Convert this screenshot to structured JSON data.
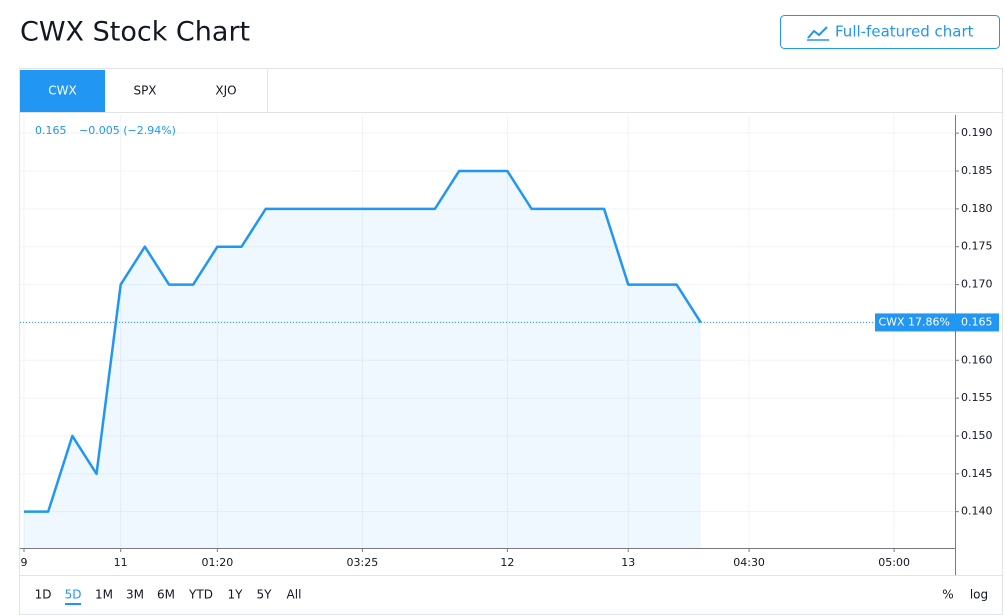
{
  "header": {
    "title": "CWX Stock Chart",
    "button": "Full-featured chart"
  },
  "tabs": [
    "CWX",
    "SPX",
    "XJO"
  ],
  "active_tab": 0,
  "chart_data": {
    "type": "line",
    "legend": {
      "last": "0.165",
      "change": "−0.005 (−2.94%)"
    },
    "categories": [
      "9",
      null,
      null,
      null,
      "11",
      null,
      null,
      null,
      "01:20",
      null,
      null,
      null,
      null,
      null,
      "03:25",
      null,
      null,
      null,
      null,
      null,
      "12",
      null,
      null,
      null,
      null,
      "13",
      null,
      null,
      null,
      null,
      "04:30",
      null,
      null,
      null,
      null,
      null,
      "05:00",
      null,
      null
    ],
    "values": [
      0.14,
      0.14,
      0.15,
      0.145,
      0.17,
      0.175,
      0.17,
      0.17,
      0.175,
      0.175,
      0.18,
      0.18,
      0.18,
      0.18,
      0.18,
      0.18,
      0.18,
      0.18,
      0.185,
      0.185,
      0.185,
      0.18,
      0.18,
      0.18,
      0.18,
      0.17,
      0.17,
      0.17,
      0.165,
      null,
      null,
      null,
      null,
      null,
      null,
      null,
      null,
      null,
      null
    ],
    "color": "#2196f3",
    "ylim": [
      0.1352,
      0.1924
    ],
    "yticks": [
      {
        "value": 0.14,
        "label": "0.140"
      },
      0.145,
      {
        "value": 0.15,
        "label": "0.150"
      },
      0.155,
      {
        "value": 0.16,
        "label": "0.160"
      },
      0.165,
      {
        "value": 0.17,
        "label": "0.170"
      },
      0.175,
      {
        "value": 0.18,
        "label": "0.180"
      },
      0.185,
      {
        "value": 0.19,
        "label": "0.190"
      }
    ],
    "grid": true,
    "price_label": {
      "text": "CWX 17.86%",
      "value": 0.165
    }
  },
  "ranges": [
    "1D",
    "5D",
    "1M",
    "3M",
    "6M",
    "YTD",
    "1Y",
    "5Y",
    "All"
  ],
  "active_range": 1,
  "scale_options": [
    "%",
    "log"
  ]
}
